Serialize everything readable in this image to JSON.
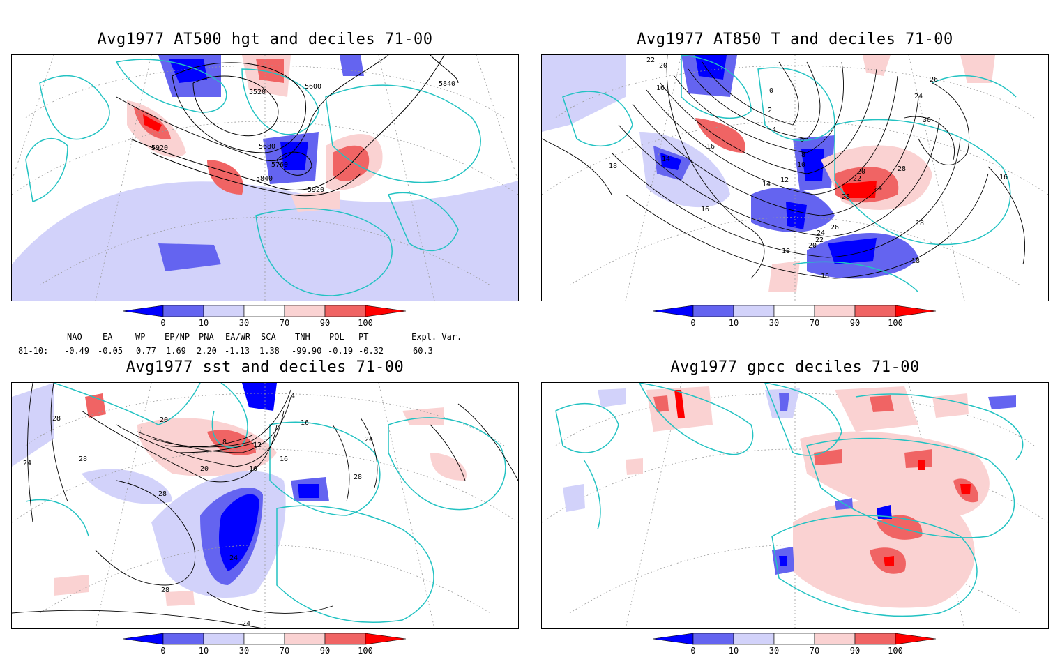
{
  "panels": [
    {
      "title": "Avg1977 AT500 hgt and deciles 71-00",
      "contour_labels": [
        "5520",
        "5600",
        "5840",
        "5920",
        "5680",
        "5760",
        "5840",
        "5920"
      ]
    },
    {
      "title": "Avg1977 AT850 T and deciles 71-00",
      "contour_labels": [
        "22",
        "20",
        "16",
        "14",
        "16",
        "18",
        "0",
        "2",
        "4",
        "6",
        "8",
        "10",
        "12",
        "14",
        "16",
        "20",
        "22",
        "24",
        "28",
        "26",
        "24",
        "22",
        "20",
        "18",
        "16",
        "18",
        "30",
        "26",
        "24",
        "28",
        "16",
        "18"
      ]
    },
    {
      "title": "Avg1977 sst and deciles 71-00",
      "contour_labels": [
        "28",
        "24",
        "28",
        "28",
        "20",
        "8",
        "12",
        "16",
        "20",
        "16",
        "24",
        "28",
        "24",
        "28",
        "24",
        "4",
        "16"
      ]
    },
    {
      "title": "Avg1977 gpcc deciles 71-00",
      "contour_labels": []
    }
  ],
  "colorbar": {
    "ticks": [
      "0",
      "10",
      "30",
      "70",
      "90",
      "100"
    ],
    "colors": {
      "deep_blue": "#0000ff",
      "mid_blue": "#6464f0",
      "light_blue": "#d2d2fa",
      "white": "#ffffff",
      "light_red": "#fad2d2",
      "mid_red": "#f06464",
      "deep_red": "#ff0000"
    }
  },
  "indices": {
    "headers": [
      "NAO",
      "EA",
      "WP",
      "EP/NP",
      "PNA",
      "EA/WR",
      "SCA",
      "TNH",
      "POL",
      "PT",
      "Expl. Var."
    ],
    "row_label": "81-10:",
    "values": [
      "-0.49",
      "-0.05",
      "0.77",
      "1.69",
      "2.20",
      "-1.13",
      "1.38",
      "-99.90",
      "-0.19",
      "-0.32",
      "60.3"
    ]
  },
  "map_colors": {
    "coast": "#22c2c2",
    "grid": "#9a9a9a"
  }
}
